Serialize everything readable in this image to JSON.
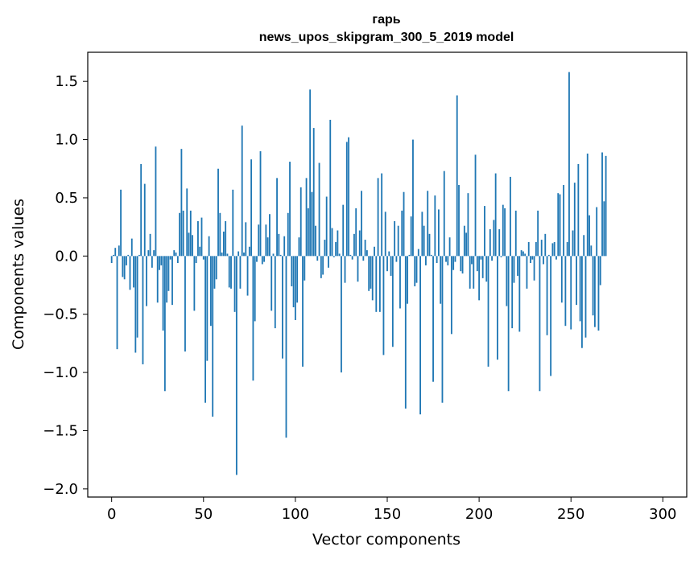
{
  "chart_data": {
    "type": "bar",
    "title": "гарь",
    "subtitle": "news_upos_skipgram_300_5_2019 model",
    "xlabel": "Vector components",
    "ylabel": "Components values",
    "xlim": [
      -13,
      313
    ],
    "ylim": [
      -2.07,
      1.75
    ],
    "xticks": [
      0,
      50,
      100,
      150,
      200,
      250,
      300
    ],
    "yticks": [
      -2.0,
      -1.5,
      -1.0,
      -0.5,
      0.0,
      0.5,
      1.0,
      1.5
    ],
    "ytick_labels": [
      "−2.0",
      "−1.5",
      "−1.0",
      "−0.5",
      "0.0",
      "0.5",
      "1.0",
      "1.5"
    ],
    "bar_color": "#1f77b4",
    "values": [
      -0.06,
      0.01,
      0.07,
      -0.8,
      0.09,
      0.57,
      -0.18,
      -0.2,
      -0.08,
      0.01,
      -0.29,
      0.15,
      -0.27,
      -0.83,
      -0.7,
      0.01,
      0.79,
      -0.93,
      0.62,
      -0.43,
      0.05,
      0.19,
      -0.1,
      0.05,
      0.94,
      -0.4,
      -0.12,
      -0.08,
      -0.64,
      -1.16,
      -0.4,
      -0.3,
      -0.03,
      -0.42,
      0.05,
      0.03,
      -0.06,
      0.37,
      0.92,
      0.39,
      -0.82,
      0.58,
      0.2,
      0.39,
      0.18,
      -0.47,
      -0.06,
      0.3,
      0.08,
      0.33,
      -0.03,
      -1.26,
      -0.9,
      0.17,
      -0.6,
      -1.38,
      -0.28,
      -0.2,
      0.75,
      0.37,
      0.03,
      0.21,
      0.3,
      0.02,
      -0.27,
      -0.28,
      0.57,
      -0.48,
      -1.88,
      0.04,
      -0.28,
      1.12,
      0.03,
      0.29,
      -0.34,
      0.08,
      0.83,
      -1.07,
      -0.56,
      -0.05,
      0.27,
      0.9,
      -0.07,
      -0.05,
      0.27,
      0.16,
      0.36,
      -0.47,
      0.02,
      -0.62,
      0.67,
      0.19,
      0.01,
      -0.88,
      0.17,
      -1.56,
      0.37,
      0.81,
      -0.26,
      -0.44,
      -0.55,
      -0.4,
      0.16,
      0.59,
      -0.95,
      -0.21,
      0.67,
      0.41,
      1.43,
      0.55,
      1.1,
      0.26,
      -0.04,
      0.8,
      -0.19,
      -0.16,
      0.14,
      0.51,
      -0.1,
      1.17,
      0.24,
      -0.01,
      0.12,
      0.22,
      0.02,
      -1.0,
      0.44,
      -0.23,
      0.98,
      1.02,
      0.01,
      -0.03,
      0.19,
      0.41,
      -0.22,
      0.22,
      0.56,
      -0.04,
      0.14,
      0.05,
      -0.3,
      -0.28,
      -0.38,
      0.08,
      -0.48,
      0.67,
      -0.48,
      0.71,
      -0.85,
      0.38,
      -0.13,
      0.04,
      -0.17,
      -0.78,
      0.3,
      -0.05,
      0.26,
      -0.45,
      0.39,
      0.55,
      -1.31,
      -0.41,
      0.01,
      0.34,
      1.0,
      -0.26,
      -0.23,
      0.06,
      -1.36,
      0.38,
      0.26,
      -0.08,
      0.56,
      0.19,
      0.01,
      -1.08,
      0.52,
      -0.06,
      0.4,
      -0.41,
      -1.26,
      0.73,
      -0.05,
      -0.08,
      0.16,
      -0.67,
      -0.12,
      -0.05,
      1.38,
      0.61,
      -0.13,
      -0.15,
      0.26,
      0.2,
      0.54,
      -0.28,
      -0.07,
      -0.28,
      0.87,
      -0.13,
      -0.38,
      -0.03,
      -0.19,
      0.43,
      -0.22,
      -0.95,
      0.23,
      -0.04,
      0.31,
      0.71,
      -0.89,
      0.23,
      -0.01,
      0.44,
      0.41,
      -0.43,
      -1.16,
      0.68,
      -0.62,
      -0.23,
      0.39,
      -0.17,
      -0.65,
      0.05,
      0.04,
      0.02,
      -0.28,
      0.12,
      -0.06,
      -0.03,
      -0.21,
      0.12,
      0.39,
      -1.16,
      0.14,
      -0.07,
      0.19,
      -0.68,
      0.01,
      -1.03,
      0.11,
      0.12,
      -0.03,
      0.54,
      0.53,
      -0.4,
      0.61,
      -0.6,
      0.12,
      1.58,
      -0.63,
      0.22,
      0.63,
      -0.42,
      0.79,
      -0.56,
      -0.79,
      0.18,
      -0.7,
      0.88,
      0.35,
      0.09,
      -0.51,
      -0.61,
      0.42,
      -0.64,
      -0.25,
      0.89,
      0.47,
      0.86
    ]
  }
}
